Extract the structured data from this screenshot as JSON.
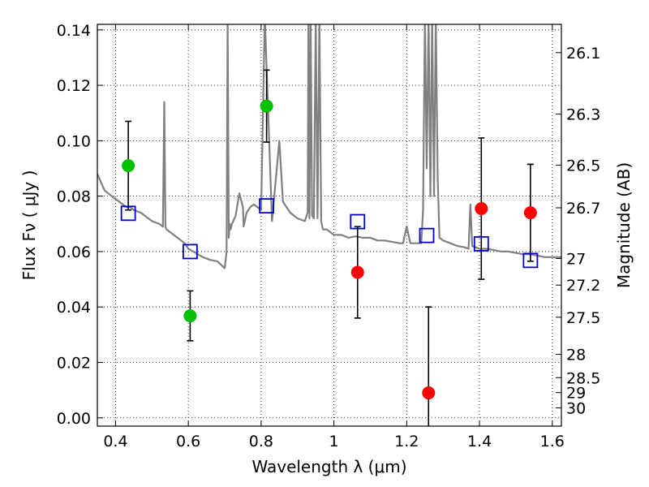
{
  "chart_data": {
    "type": "scatter",
    "xlabel": "Wavelength  λ (μm)",
    "ylabel": "Flux  Fν  ( μJy )",
    "y2label": "Magnitude (AB)",
    "xlim": [
      0.35,
      1.625
    ],
    "ylim": [
      -0.003,
      0.142
    ],
    "x_ticks": [
      0.4,
      0.6,
      0.8,
      1.0,
      1.2,
      1.4,
      1.6
    ],
    "x_tick_labels": [
      "0.4",
      "0.6",
      "0.8",
      "1",
      "1.2",
      "1.4",
      "1.6"
    ],
    "y_ticks": [
      0.0,
      0.02,
      0.04,
      0.06,
      0.08,
      0.1,
      0.12,
      0.14
    ],
    "y_tick_labels": [
      "0.00",
      "0.02",
      "0.04",
      "0.06",
      "0.08",
      "0.10",
      "0.12",
      "0.14"
    ],
    "y2_ticks": [
      {
        "label": "26.1",
        "flux": 0.1318
      },
      {
        "label": "26.3",
        "flux": 0.1096
      },
      {
        "label": "26.5",
        "flux": 0.0912
      },
      {
        "label": "26.7",
        "flux": 0.0758
      },
      {
        "label": "27",
        "flux": 0.0575
      },
      {
        "label": "27.2",
        "flux": 0.0479
      },
      {
        "label": "27.5",
        "flux": 0.0363
      },
      {
        "label": "28",
        "flux": 0.0229
      },
      {
        "label": "28.5",
        "flux": 0.0145
      },
      {
        "label": "29",
        "flux": 0.0091
      },
      {
        "label": "30",
        "flux": 0.0036
      }
    ],
    "grid": true,
    "series": [
      {
        "marker": "line",
        "color": "#808080",
        "x": [
          0.35,
          0.36,
          0.37,
          0.38,
          0.39,
          0.4,
          0.41,
          0.42,
          0.43,
          0.44,
          0.45,
          0.46,
          0.47,
          0.48,
          0.49,
          0.5,
          0.51,
          0.52,
          0.53,
          0.534,
          0.537,
          0.54,
          0.55,
          0.56,
          0.57,
          0.58,
          0.59,
          0.6,
          0.62,
          0.64,
          0.66,
          0.68,
          0.7,
          0.705,
          0.708,
          0.711,
          0.714,
          0.716,
          0.72,
          0.73,
          0.74,
          0.75,
          0.752,
          0.76,
          0.77,
          0.78,
          0.79,
          0.8,
          0.81,
          0.83,
          0.85,
          0.86,
          0.87,
          0.88,
          0.9,
          0.92,
          0.928,
          0.93,
          0.933,
          0.936,
          0.94,
          0.945,
          0.95,
          0.955,
          0.96,
          0.965,
          0.97,
          0.98,
          1.0,
          1.02,
          1.04,
          1.06,
          1.08,
          1.1,
          1.12,
          1.14,
          1.16,
          1.18,
          1.19,
          1.2,
          1.21,
          1.23,
          1.24,
          1.245,
          1.25,
          1.255,
          1.26,
          1.265,
          1.27,
          1.275,
          1.28,
          1.285,
          1.29,
          1.3,
          1.32,
          1.34,
          1.36,
          1.37,
          1.375,
          1.38,
          1.39,
          1.4,
          1.42,
          1.44,
          1.46,
          1.48,
          1.5,
          1.52,
          1.54,
          1.56,
          1.58,
          1.6,
          1.625
        ],
        "y": [
          0.088,
          0.085,
          0.082,
          0.081,
          0.08,
          0.079,
          0.078,
          0.077,
          0.076,
          0.076,
          0.075,
          0.0745,
          0.074,
          0.073,
          0.072,
          0.071,
          0.0705,
          0.07,
          0.069,
          0.114,
          0.069,
          0.068,
          0.067,
          0.066,
          0.065,
          0.064,
          0.063,
          0.061,
          0.0595,
          0.058,
          0.057,
          0.0565,
          0.054,
          0.06,
          0.145,
          0.065,
          0.07,
          0.068,
          0.07,
          0.073,
          0.081,
          0.076,
          0.069,
          0.074,
          0.076,
          0.077,
          0.076,
          0.075,
          0.145,
          0.071,
          0.1,
          0.078,
          0.076,
          0.074,
          0.072,
          0.071,
          0.074,
          0.145,
          0.072,
          0.145,
          0.073,
          0.072,
          0.145,
          0.072,
          0.145,
          0.071,
          0.068,
          0.068,
          0.066,
          0.066,
          0.065,
          0.0655,
          0.065,
          0.065,
          0.064,
          0.064,
          0.0635,
          0.063,
          0.063,
          0.069,
          0.063,
          0.063,
          0.063,
          0.075,
          0.145,
          0.09,
          0.145,
          0.08,
          0.145,
          0.08,
          0.145,
          0.087,
          0.065,
          0.064,
          0.063,
          0.062,
          0.0615,
          0.061,
          0.077,
          0.062,
          0.0615,
          0.061,
          0.061,
          0.0605,
          0.06,
          0.06,
          0.0595,
          0.059,
          0.059,
          0.0585,
          0.058,
          0.058,
          0.058
        ]
      },
      {
        "marker": "circle",
        "color": "#00c000",
        "x": [
          0.435,
          0.605,
          0.815
        ],
        "y": [
          0.091,
          0.0368,
          0.1125
        ],
        "err": [
          0.016,
          0.009,
          0.013
        ]
      },
      {
        "marker": "circle",
        "color": "#ff0000",
        "x": [
          1.065,
          1.26,
          1.405,
          1.54
        ],
        "y": [
          0.0525,
          0.009,
          0.0755,
          0.074
        ],
        "err": [
          0.0165,
          0.031,
          0.0255,
          0.0175
        ]
      },
      {
        "marker": "square",
        "color": "#0000cc",
        "x": [
          0.435,
          0.605,
          0.815,
          1.065,
          1.255,
          1.405,
          1.54
        ],
        "y": [
          0.0738,
          0.06,
          0.0765,
          0.0708,
          0.0658,
          0.0628,
          0.0568
        ]
      }
    ]
  }
}
